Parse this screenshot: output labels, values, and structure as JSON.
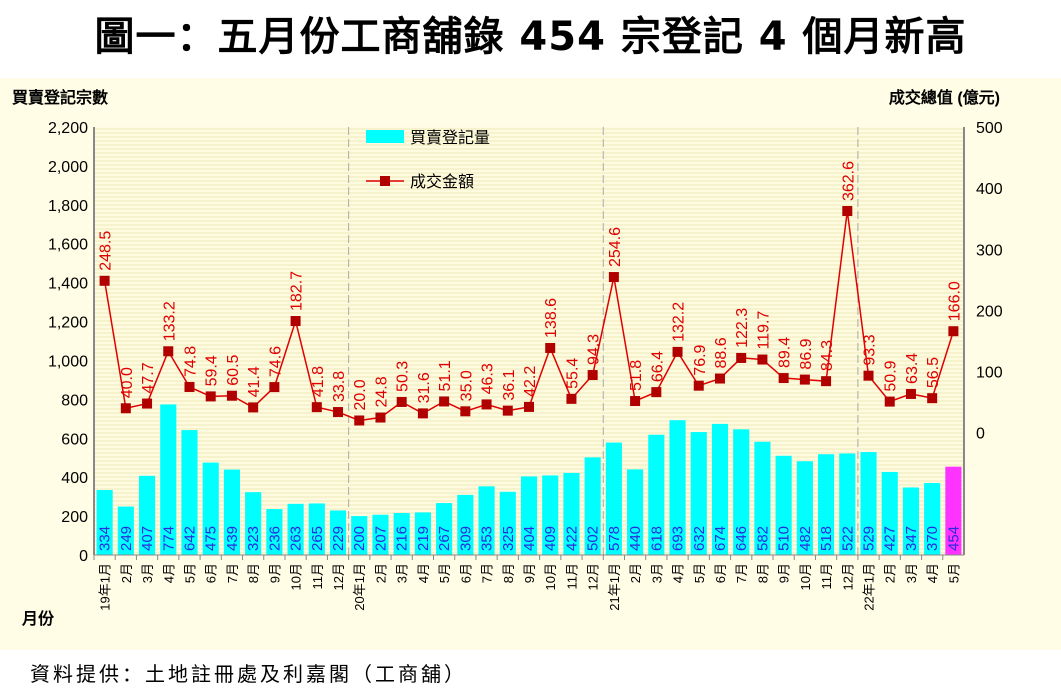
{
  "title": "圖一：五月份工商舖錄 454 宗登記  4 個月新高",
  "source": "資料提供：土地註冊處及利嘉閣（工商舖）",
  "chart_data": {
    "type": "bar+line",
    "left_axis_label": "買賣登記宗數",
    "right_axis_label": "成交總值 (億元)",
    "xlabel": "月份",
    "left_ylim": [
      0,
      2200
    ],
    "left_ticks": [
      "0",
      "200",
      "400",
      "600",
      "800",
      "1,000",
      "1,200",
      "1,400",
      "1,600",
      "1,800",
      "2,000",
      "2,200"
    ],
    "right_ylim": [
      -200,
      500
    ],
    "right_ticks": [
      "0",
      "100",
      "200",
      "300",
      "400",
      "500"
    ],
    "categories": [
      "19年1月",
      "2月",
      "3月",
      "4月",
      "5月",
      "6月",
      "7月",
      "8月",
      "9月",
      "10月",
      "11月",
      "12月",
      "20年1月",
      "2月",
      "3月",
      "4月",
      "5月",
      "6月",
      "7月",
      "8月",
      "9月",
      "10月",
      "11月",
      "12月",
      "21年1月",
      "2月",
      "3月",
      "4月",
      "5月",
      "6月",
      "7月",
      "8月",
      "9月",
      "10月",
      "11月",
      "12月",
      "22年1月",
      "2月",
      "3月",
      "4月",
      "5月"
    ],
    "series": [
      {
        "name": "買賣登記量",
        "type": "bar",
        "axis": "left",
        "color": "#00ffff",
        "highlight_color": "#ff33ff",
        "values": [
          334,
          249,
          407,
          774,
          642,
          475,
          439,
          323,
          236,
          263,
          265,
          229,
          200,
          207,
          216,
          219,
          267,
          309,
          353,
          325,
          404,
          409,
          422,
          502,
          578,
          440,
          618,
          693,
          632,
          674,
          646,
          582,
          510,
          482,
          518,
          522,
          529,
          427,
          347,
          370,
          454
        ]
      },
      {
        "name": "成交金額",
        "type": "line",
        "axis": "right",
        "color": "#e00000",
        "values": [
          248.5,
          40.0,
          47.7,
          133.2,
          74.8,
          59.4,
          60.5,
          41.4,
          74.6,
          182.7,
          41.8,
          33.8,
          20.0,
          24.8,
          50.3,
          31.6,
          51.1,
          35.0,
          46.3,
          36.1,
          42.2,
          138.6,
          55.4,
          94.3,
          254.6,
          51.8,
          66.4,
          132.2,
          76.9,
          88.6,
          122.3,
          119.7,
          89.4,
          86.9,
          84.3,
          362.6,
          93.3,
          50.9,
          63.4,
          56.5,
          166.0
        ]
      }
    ],
    "legend": "top-center"
  }
}
